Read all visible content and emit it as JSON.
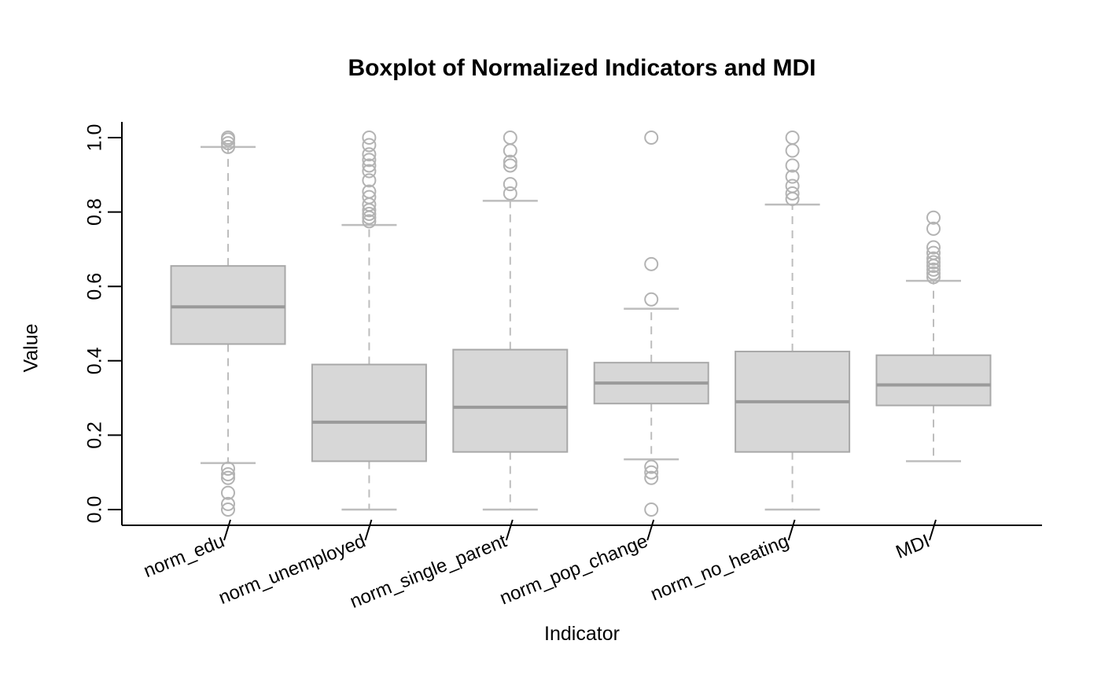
{
  "chart_data": {
    "type": "boxplot",
    "title": "Boxplot of Normalized Indicators and MDI",
    "xlabel": "Indicator",
    "ylabel": "Value",
    "ylim": [
      0.0,
      1.0
    ],
    "y_ticks": [
      "0.0",
      "0.2",
      "0.4",
      "0.6",
      "0.8",
      "1.0"
    ],
    "grid": false,
    "legend": "none",
    "categories": [
      "norm_edu",
      "norm_unemployed",
      "norm_single_parent",
      "norm_pop_change",
      "norm_no_heating",
      "MDI"
    ],
    "boxes": [
      {
        "name": "norm_edu",
        "q1": 0.445,
        "median": 0.545,
        "q3": 0.655,
        "whisker_low": 0.125,
        "whisker_high": 0.975,
        "outliers_low": [
          0.11,
          0.095,
          0.085,
          0.045,
          0.015,
          0.0
        ],
        "outliers_high": [
          0.975,
          0.985,
          0.995,
          1.0
        ]
      },
      {
        "name": "norm_unemployed",
        "q1": 0.13,
        "median": 0.235,
        "q3": 0.39,
        "whisker_low": 0.0,
        "whisker_high": 0.765,
        "outliers_low": [],
        "outliers_high": [
          0.775,
          0.785,
          0.795,
          0.805,
          0.82,
          0.84,
          0.855,
          0.885,
          0.91,
          0.925,
          0.94,
          0.955,
          0.98,
          1.0
        ]
      },
      {
        "name": "norm_single_parent",
        "q1": 0.155,
        "median": 0.275,
        "q3": 0.43,
        "whisker_low": 0.0,
        "whisker_high": 0.83,
        "outliers_low": [],
        "outliers_high": [
          0.85,
          0.875,
          0.925,
          0.935,
          0.965,
          1.0
        ]
      },
      {
        "name": "norm_pop_change",
        "q1": 0.285,
        "median": 0.34,
        "q3": 0.395,
        "whisker_low": 0.135,
        "whisker_high": 0.54,
        "outliers_low": [
          0.115,
          0.1,
          0.085,
          0.0
        ],
        "outliers_high": [
          0.565,
          0.66,
          1.0
        ]
      },
      {
        "name": "norm_no_heating",
        "q1": 0.155,
        "median": 0.29,
        "q3": 0.425,
        "whisker_low": 0.0,
        "whisker_high": 0.82,
        "outliers_low": [],
        "outliers_high": [
          0.835,
          0.85,
          0.87,
          0.895,
          0.925,
          0.965,
          1.0
        ]
      },
      {
        "name": "MDI",
        "q1": 0.28,
        "median": 0.335,
        "q3": 0.415,
        "whisker_low": 0.13,
        "whisker_high": 0.615,
        "outliers_low": [],
        "outliers_high": [
          0.625,
          0.635,
          0.645,
          0.655,
          0.665,
          0.675,
          0.69,
          0.705,
          0.755,
          0.785
        ]
      }
    ],
    "colors": {
      "box_fill": "#d7d7d7",
      "box_border": "#a8a8a8",
      "median": "#9a9a9a",
      "whisker": "#bdbdbd",
      "outlier": "#b3b3b3",
      "axis": "#000000",
      "text": "#000000"
    }
  }
}
